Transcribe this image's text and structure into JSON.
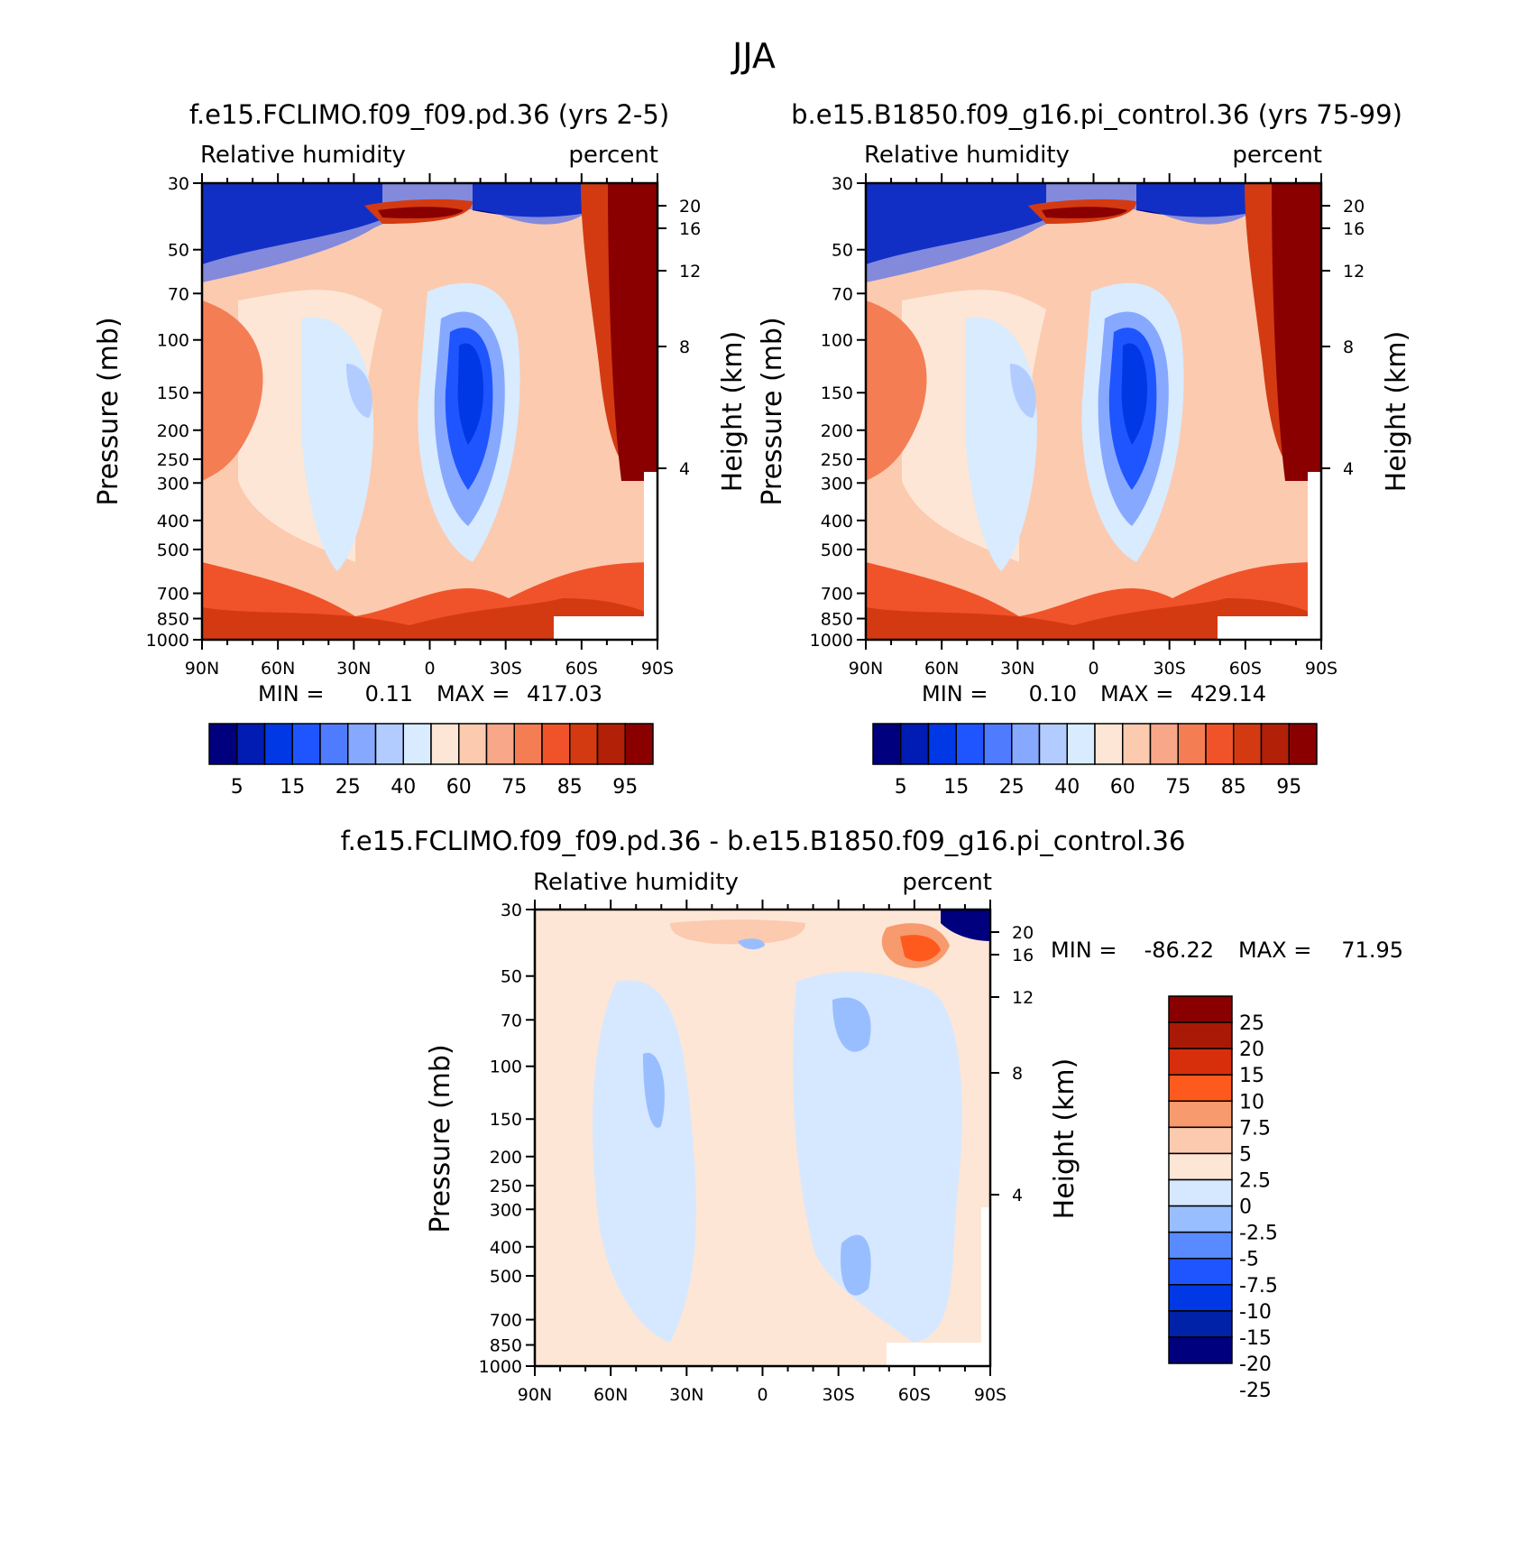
{
  "figure": {
    "title": "JJA"
  },
  "colors": {
    "abs_levels": [
      "#00007f",
      "#001cb2",
      "#0038e5",
      "#1f55ff",
      "#4f7bff",
      "#87a8ff",
      "#b3ccff",
      "#d8ebff",
      "#fde6d5",
      "#fccaaf",
      "#f8a889",
      "#f47d54",
      "#f0532a",
      "#d33a12",
      "#b22008",
      "#8a0000"
    ],
    "diff_levels": [
      "#00007f",
      "#0022a8",
      "#0038e5",
      "#1f55ff",
      "#5a8aff",
      "#99beff",
      "#d6e8ff",
      "#fde6d5",
      "#fccaaf",
      "#f79a6d",
      "#ff5a1e",
      "#d72e0c",
      "#a81a06",
      "#8a0000"
    ]
  },
  "panels": {
    "p1": {
      "title": "f.e15.FCLIMO.f09_f09.pd.36 (yrs 2-5)",
      "left_label": "Relative humidity",
      "right_label": "percent",
      "min_label": "MIN =",
      "min_value": "0.11",
      "max_label": "MAX =",
      "max_value": "417.03"
    },
    "p2": {
      "title": "b.e15.B1850.f09_g16.pi_control.36 (yrs 75-99)",
      "left_label": "Relative humidity",
      "right_label": "percent",
      "min_label": "MIN =",
      "min_value": "0.10",
      "max_label": "MAX =",
      "max_value": "429.14"
    },
    "p3": {
      "title": "f.e15.FCLIMO.f09_f09.pd.36 - b.e15.B1850.f09_g16.pi_control.36",
      "left_label": "Relative humidity",
      "right_label": "percent",
      "min_label": "MIN =",
      "min_value": "-86.22",
      "max_label": "MAX =",
      "max_value": "71.95"
    }
  },
  "axes": {
    "ylabel": "Pressure (mb)",
    "ylabel_right": "Height (km)",
    "y_ticks": [
      "30",
      "50",
      "70",
      "100",
      "150",
      "200",
      "250",
      "300",
      "400",
      "500",
      "700",
      "850",
      "1000"
    ],
    "y_right_ticks": [
      "20",
      "16",
      "12",
      "8",
      "4"
    ],
    "x_ticks": [
      "90N",
      "60N",
      "30N",
      "0",
      "30S",
      "60S",
      "90S"
    ]
  },
  "colorbars": {
    "abs_labels": [
      "5",
      "15",
      "25",
      "40",
      "60",
      "75",
      "85",
      "95"
    ],
    "diff_labels": [
      "25",
      "20",
      "15",
      "10",
      "7.5",
      "5",
      "2.5",
      "0",
      "-2.5",
      "-5",
      "-7.5",
      "-10",
      "-15",
      "-20",
      "-25"
    ]
  },
  "chart_data": [
    {
      "type": "heatmap",
      "title": "f.e15.FCLIMO.f09_f09.pd.36 (yrs 2-5)",
      "variable": "Relative humidity",
      "units": "percent",
      "xlabel": "",
      "ylabel": "Pressure (mb)",
      "ylabel_right": "Height (km)",
      "x_range": [
        90,
        -90
      ],
      "y_range": [
        1000,
        30
      ],
      "y_scale": "log",
      "levels": [
        5,
        10,
        15,
        20,
        25,
        30,
        40,
        50,
        60,
        70,
        75,
        80,
        85,
        90,
        95
      ],
      "min": 0.11,
      "max": 417.03,
      "features": [
        {
          "name": "upper-troposphere dry region",
          "value_approx": 5
        },
        {
          "name": "tropopause maximum near 10N at 100mb",
          "value_approx": 95
        },
        {
          "name": "subtropical dry minimum near 15-20S, 400mb",
          "value_approx": 20
        },
        {
          "name": "northern subtropical dry region near 20N",
          "value_approx": 40
        },
        {
          "name": "high latitude southern column",
          "value_approx": 95
        },
        {
          "name": "boundary layer moist",
          "value_approx": 85
        }
      ]
    },
    {
      "type": "heatmap",
      "title": "b.e15.B1850.f09_g16.pi_control.36 (yrs 75-99)",
      "variable": "Relative humidity",
      "units": "percent",
      "xlabel": "",
      "ylabel": "Pressure (mb)",
      "ylabel_right": "Height (km)",
      "x_range": [
        90,
        -90
      ],
      "y_range": [
        1000,
        30
      ],
      "y_scale": "log",
      "levels": [
        5,
        10,
        15,
        20,
        25,
        30,
        40,
        50,
        60,
        70,
        75,
        80,
        85,
        90,
        95
      ],
      "min": 0.1,
      "max": 429.14,
      "features": [
        {
          "name": "upper-troposphere dry region",
          "value_approx": 5
        },
        {
          "name": "tropopause maximum near 10N at 100mb",
          "value_approx": 95
        },
        {
          "name": "subtropical dry minimum near 15-20S, 400mb",
          "value_approx": 20
        },
        {
          "name": "northern subtropical dry region near 20N",
          "value_approx": 40
        },
        {
          "name": "high latitude southern column",
          "value_approx": 95
        },
        {
          "name": "boundary layer moist",
          "value_approx": 85
        }
      ]
    },
    {
      "type": "heatmap",
      "title": "f.e15.FCLIMO.f09_f09.pd.36 - b.e15.B1850.f09_g16.pi_control.36",
      "variable": "Relative humidity",
      "units": "percent",
      "xlabel": "",
      "ylabel": "Pressure (mb)",
      "ylabel_right": "Height (km)",
      "x_range": [
        90,
        -90
      ],
      "y_range": [
        1000,
        30
      ],
      "y_scale": "log",
      "levels": [
        -25,
        -20,
        -15,
        -10,
        -7.5,
        -5,
        -2.5,
        0,
        2.5,
        5,
        7.5,
        10,
        15,
        20,
        25
      ],
      "min": -86.22,
      "max": 71.95,
      "features": [
        {
          "name": "strong negative near 80-90S, 30-70mb",
          "value_approx": -25
        },
        {
          "name": "positive near 70S, 100mb",
          "value_approx": 15
        },
        {
          "name": "positive near equator 70-100mb",
          "value_approx": 7.5
        },
        {
          "name": "slightly negative broad subtropics",
          "value_approx": -2.5
        },
        {
          "name": "slightly positive tropics",
          "value_approx": 2.5
        }
      ]
    }
  ]
}
